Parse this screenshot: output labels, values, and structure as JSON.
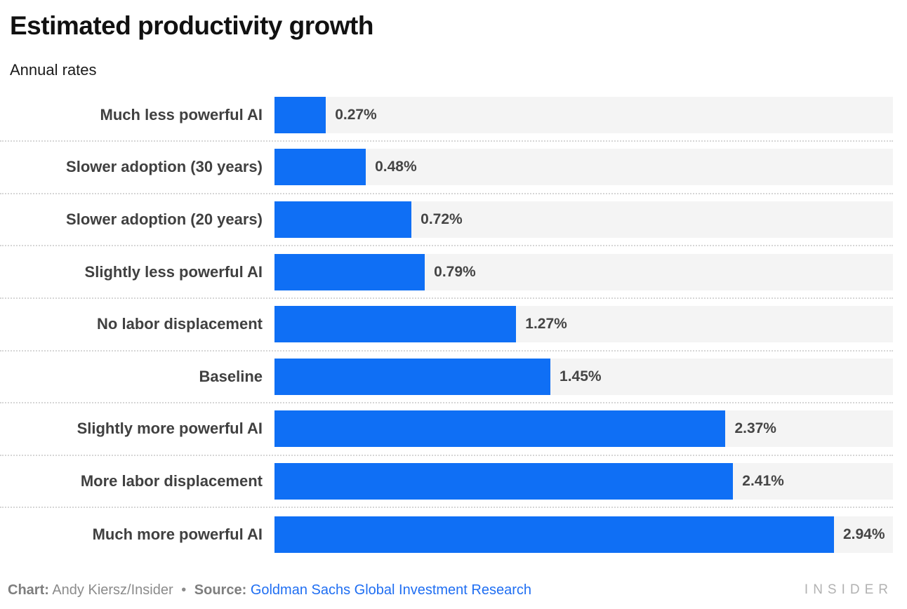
{
  "header": {
    "title": "Estimated productivity growth",
    "subtitle": "Annual rates"
  },
  "chart_data": {
    "type": "bar",
    "orientation": "horizontal",
    "title": "Estimated productivity growth",
    "subtitle": "Annual rates",
    "categories": [
      "Much less powerful AI",
      "Slower adoption (30 years)",
      "Slower adoption (20 years)",
      "Slightly less powerful AI",
      "No labor displacement",
      "Baseline",
      "Slightly more powerful AI",
      "More labor displacement",
      "Much more powerful AI"
    ],
    "values": [
      0.27,
      0.48,
      0.72,
      0.79,
      1.27,
      1.45,
      2.37,
      2.41,
      2.94
    ],
    "value_labels": [
      "0.27%",
      "0.48%",
      "0.72%",
      "0.79%",
      "1.27%",
      "1.45%",
      "2.37%",
      "2.41%",
      "2.94%"
    ],
    "unit": "%",
    "xlim": [
      0,
      3.25
    ],
    "bar_color": "#0f6ff5",
    "track_color": "#f4f4f4",
    "grid": "dotted-row-separators",
    "legend": "none",
    "value_label_position": "right-of-bar"
  },
  "footer": {
    "chart_credit_label": "Chart:",
    "chart_credit_value": "Andy Kiersz/Insider",
    "separator": "•",
    "source_label": "Source:",
    "source_value": "Goldman Sachs Global Investment Research",
    "brand": "INSIDER"
  },
  "colors": {
    "bar": "#0f6ff5",
    "track": "#f4f4f4",
    "link": "#1f6ef2",
    "label_text": "#404040",
    "title_text": "#111111",
    "footer_text": "#8b8b8b",
    "brand_text": "#b2b2b2",
    "separator_dots": "#d6d6d6"
  }
}
